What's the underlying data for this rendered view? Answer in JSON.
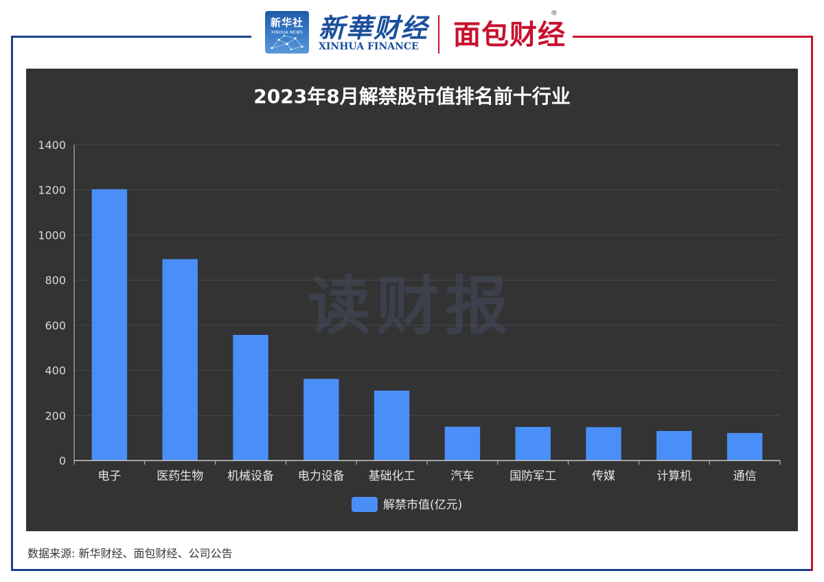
{
  "header": {
    "badge_text": "新华社",
    "badge_sub": "XINHUA NEWS",
    "brand_cn": "新華财经",
    "brand_en": "XINHUA FINANCE",
    "brand2": "面包财经",
    "reg_mark": "®"
  },
  "watermark": "读财报",
  "source_note": "数据来源: 新华财经、面包财经、公司公告",
  "colors": {
    "bar": "#4a8ff8",
    "panel": "#333333",
    "frame_blue": "#1b3f8a",
    "frame_red": "#c8102e"
  },
  "chart_data": {
    "type": "bar",
    "title": "2023年8月解禁股市值排名前十行业",
    "categories": [
      "电子",
      "医药生物",
      "机械设备",
      "电力设备",
      "基础化工",
      "汽车",
      "国防军工",
      "传媒",
      "计算机",
      "通信"
    ],
    "series": [
      {
        "name": "解禁市值(亿元)",
        "values": [
          1203,
          893,
          557,
          362,
          310,
          150,
          149,
          148,
          131,
          122
        ]
      }
    ],
    "yticks": [
      "0",
      "200",
      "400",
      "600",
      "800",
      "1000",
      "1200",
      "1400"
    ],
    "ylim": [
      0,
      1400
    ],
    "grid": true,
    "legend": "bottom-center"
  }
}
